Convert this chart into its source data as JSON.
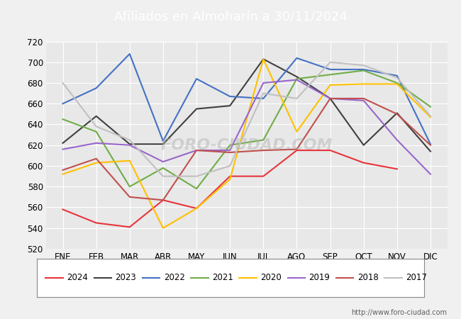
{
  "title": "Afiliados en Almoharín a 30/11/2024",
  "title_color": "#ffffff",
  "title_bg_color": "#4472c4",
  "background_color": "#f0f0f0",
  "plot_bg_color": "#e8e8e8",
  "watermark": "FORO-CIUDAD.COM",
  "url": "http://www.foro-ciudad.com",
  "months": [
    "ENE",
    "FEB",
    "MAR",
    "ABR",
    "MAY",
    "JUN",
    "JUL",
    "AGO",
    "SEP",
    "OCT",
    "NOV",
    "DIC"
  ],
  "ylim": [
    520,
    720
  ],
  "yticks": [
    520,
    540,
    560,
    580,
    600,
    620,
    640,
    660,
    680,
    700,
    720
  ],
  "series": {
    "2024": {
      "color": "#e8343c",
      "data": [
        558,
        545,
        541,
        567,
        559,
        590,
        590,
        615,
        615,
        603,
        597,
        null
      ]
    },
    "2023": {
      "color": "#404040",
      "data": [
        622,
        648,
        621,
        621,
        655,
        658,
        703,
        686,
        665,
        620,
        651,
        614
      ]
    },
    "2022": {
      "color": "#4472c4",
      "data": [
        660,
        675,
        708,
        624,
        684,
        667,
        665,
        704,
        693,
        693,
        687,
        621
      ]
    },
    "2021": {
      "color": "#70ad47",
      "data": [
        645,
        633,
        580,
        598,
        578,
        620,
        625,
        684,
        688,
        692,
        680,
        657
      ]
    },
    "2020": {
      "color": "#ffc000",
      "data": [
        592,
        603,
        605,
        540,
        559,
        587,
        703,
        633,
        678,
        679,
        679,
        647
      ]
    },
    "2019": {
      "color": "#9966cc",
      "data": [
        616,
        622,
        620,
        604,
        615,
        615,
        680,
        683,
        665,
        663,
        625,
        592
      ]
    },
    "2018": {
      "color": "#c0504d",
      "data": [
        596,
        607,
        570,
        567,
        615,
        613,
        615,
        616,
        665,
        665,
        650,
        620
      ]
    },
    "2017": {
      "color": "#c0c0c0",
      "data": [
        680,
        638,
        625,
        590,
        590,
        600,
        670,
        665,
        700,
        697,
        685,
        648
      ]
    }
  }
}
